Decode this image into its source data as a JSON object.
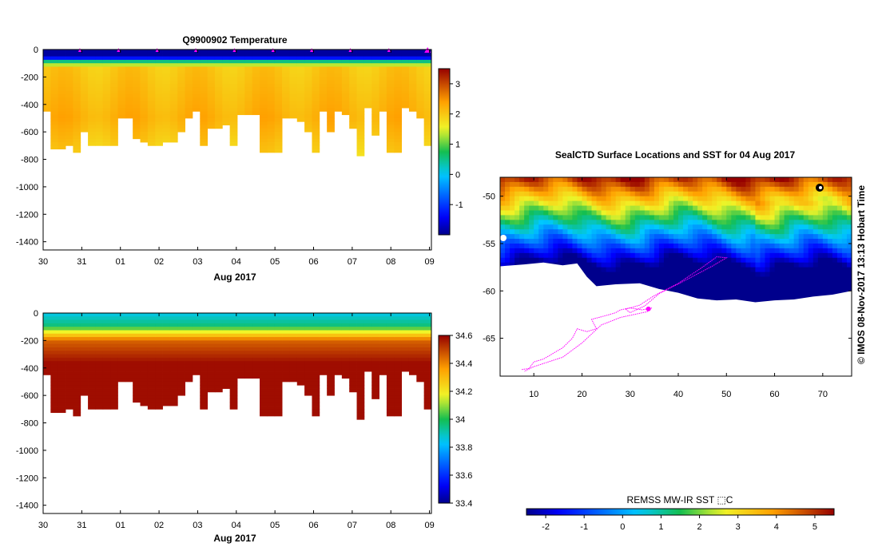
{
  "chart_data": [
    {
      "type": "heatmap",
      "id": "temperature",
      "title": "Q9900902  Temperature",
      "xlabel": "Aug 2017",
      "x_ticks": [
        "30",
        "31",
        "01",
        "02",
        "03",
        "04",
        "05",
        "06",
        "07",
        "08",
        "09"
      ],
      "xlim": [
        0,
        10.05
      ],
      "y_ticks": [
        "0",
        "-200",
        "-400",
        "-600",
        "-800",
        "-1000",
        "-1200",
        "-1400"
      ],
      "ylim": [
        -1460,
        0
      ],
      "colorbar": {
        "min": -2,
        "max": 3.5,
        "ticks": [
          "-1",
          "0",
          "1",
          "2",
          "3"
        ],
        "tick_values": [
          -1,
          0,
          1,
          2,
          3
        ]
      },
      "surface_marker_days": [
        1,
        2,
        3,
        4,
        5,
        6,
        7,
        8,
        9,
        10
      ],
      "profile_depths_m": [
        450,
        720,
        720,
        700,
        740,
        600,
        700,
        700,
        700,
        700,
        500,
        500,
        650,
        660,
        700,
        700,
        670,
        660,
        600,
        500,
        440,
        680,
        560,
        560,
        540,
        690,
        460,
        460,
        460,
        730,
        730,
        730,
        500,
        500,
        510,
        580,
        740,
        440,
        580,
        450,
        460,
        560,
        760,
        420,
        620,
        440,
        740,
        730,
        420,
        440,
        500,
        680
      ]
    },
    {
      "type": "heatmap",
      "id": "salinity",
      "title": "",
      "xlabel": "Aug 2017",
      "x_ticks": [
        "30",
        "31",
        "01",
        "02",
        "03",
        "04",
        "05",
        "06",
        "07",
        "08",
        "09"
      ],
      "xlim": [
        0,
        10.05
      ],
      "y_ticks": [
        "0",
        "-200",
        "-400",
        "-600",
        "-800",
        "-1000",
        "-1200",
        "-1400"
      ],
      "ylim": [
        -1460,
        0
      ],
      "colorbar": {
        "min": 33.4,
        "max": 34.6,
        "ticks": [
          "33.4",
          "33.6",
          "33.8",
          "34",
          "34.2",
          "34.4",
          "34.6"
        ],
        "tick_values": [
          33.4,
          33.6,
          33.8,
          34.0,
          34.2,
          34.4,
          34.6
        ]
      }
    },
    {
      "type": "heatmap",
      "id": "sst_map",
      "title": "SealCTD Surface Locations and SST for 04 Aug 2017",
      "x_ticks": [
        "10",
        "20",
        "30",
        "40",
        "50",
        "60",
        "70"
      ],
      "x_tick_values": [
        10,
        20,
        30,
        40,
        50,
        60,
        70
      ],
      "xlim": [
        3,
        76
      ],
      "y_ticks": [
        "-50",
        "-55",
        "-60",
        "-65"
      ],
      "y_tick_values": [
        -50,
        -55,
        -60,
        -65
      ],
      "ylim": [
        -69,
        -48
      ],
      "colorbar_label": "REMSS MW-IR SST ⬚C",
      "colorbar": {
        "min": -2.5,
        "max": 5.5,
        "ticks": [
          "-2",
          "-1",
          "0",
          "1",
          "2",
          "3",
          "4",
          "5"
        ],
        "tick_values": [
          -2,
          -1,
          0,
          1,
          2,
          3,
          4,
          5
        ]
      },
      "side_label": "©  IMOS 08-Nov-2017 13:13 Hobart Time",
      "track": [
        [
          7.5,
          -68.3
        ],
        [
          9,
          -68.2
        ],
        [
          10,
          -67.5
        ],
        [
          12,
          -67.2
        ],
        [
          16,
          -66.0
        ],
        [
          18,
          -65.0
        ],
        [
          19,
          -64.0
        ],
        [
          21,
          -64.3
        ],
        [
          23,
          -64.0
        ],
        [
          22,
          -63.0
        ],
        [
          25,
          -62.6
        ],
        [
          27,
          -62.3
        ],
        [
          28,
          -62.0
        ],
        [
          30,
          -61.8
        ],
        [
          32,
          -61.5
        ],
        [
          35,
          -60.5
        ],
        [
          40,
          -59.2
        ],
        [
          45,
          -57.5
        ],
        [
          48,
          -56.4
        ],
        [
          50,
          -56.5
        ],
        [
          47,
          -57.4
        ],
        [
          41,
          -59.0
        ],
        [
          36,
          -60.3
        ],
        [
          33,
          -61.6
        ],
        [
          30,
          -62.3
        ],
        [
          29,
          -61.9
        ],
        [
          30,
          -61.8
        ],
        [
          32.5,
          -62.0
        ],
        [
          34.5,
          -61.8
        ],
        [
          33.5,
          -62.2
        ],
        [
          28,
          -62.8
        ],
        [
          24,
          -63.6
        ],
        [
          20,
          -65.5
        ],
        [
          16,
          -67.0
        ],
        [
          10,
          -68.0
        ],
        [
          8,
          -68.5
        ]
      ]
    }
  ]
}
